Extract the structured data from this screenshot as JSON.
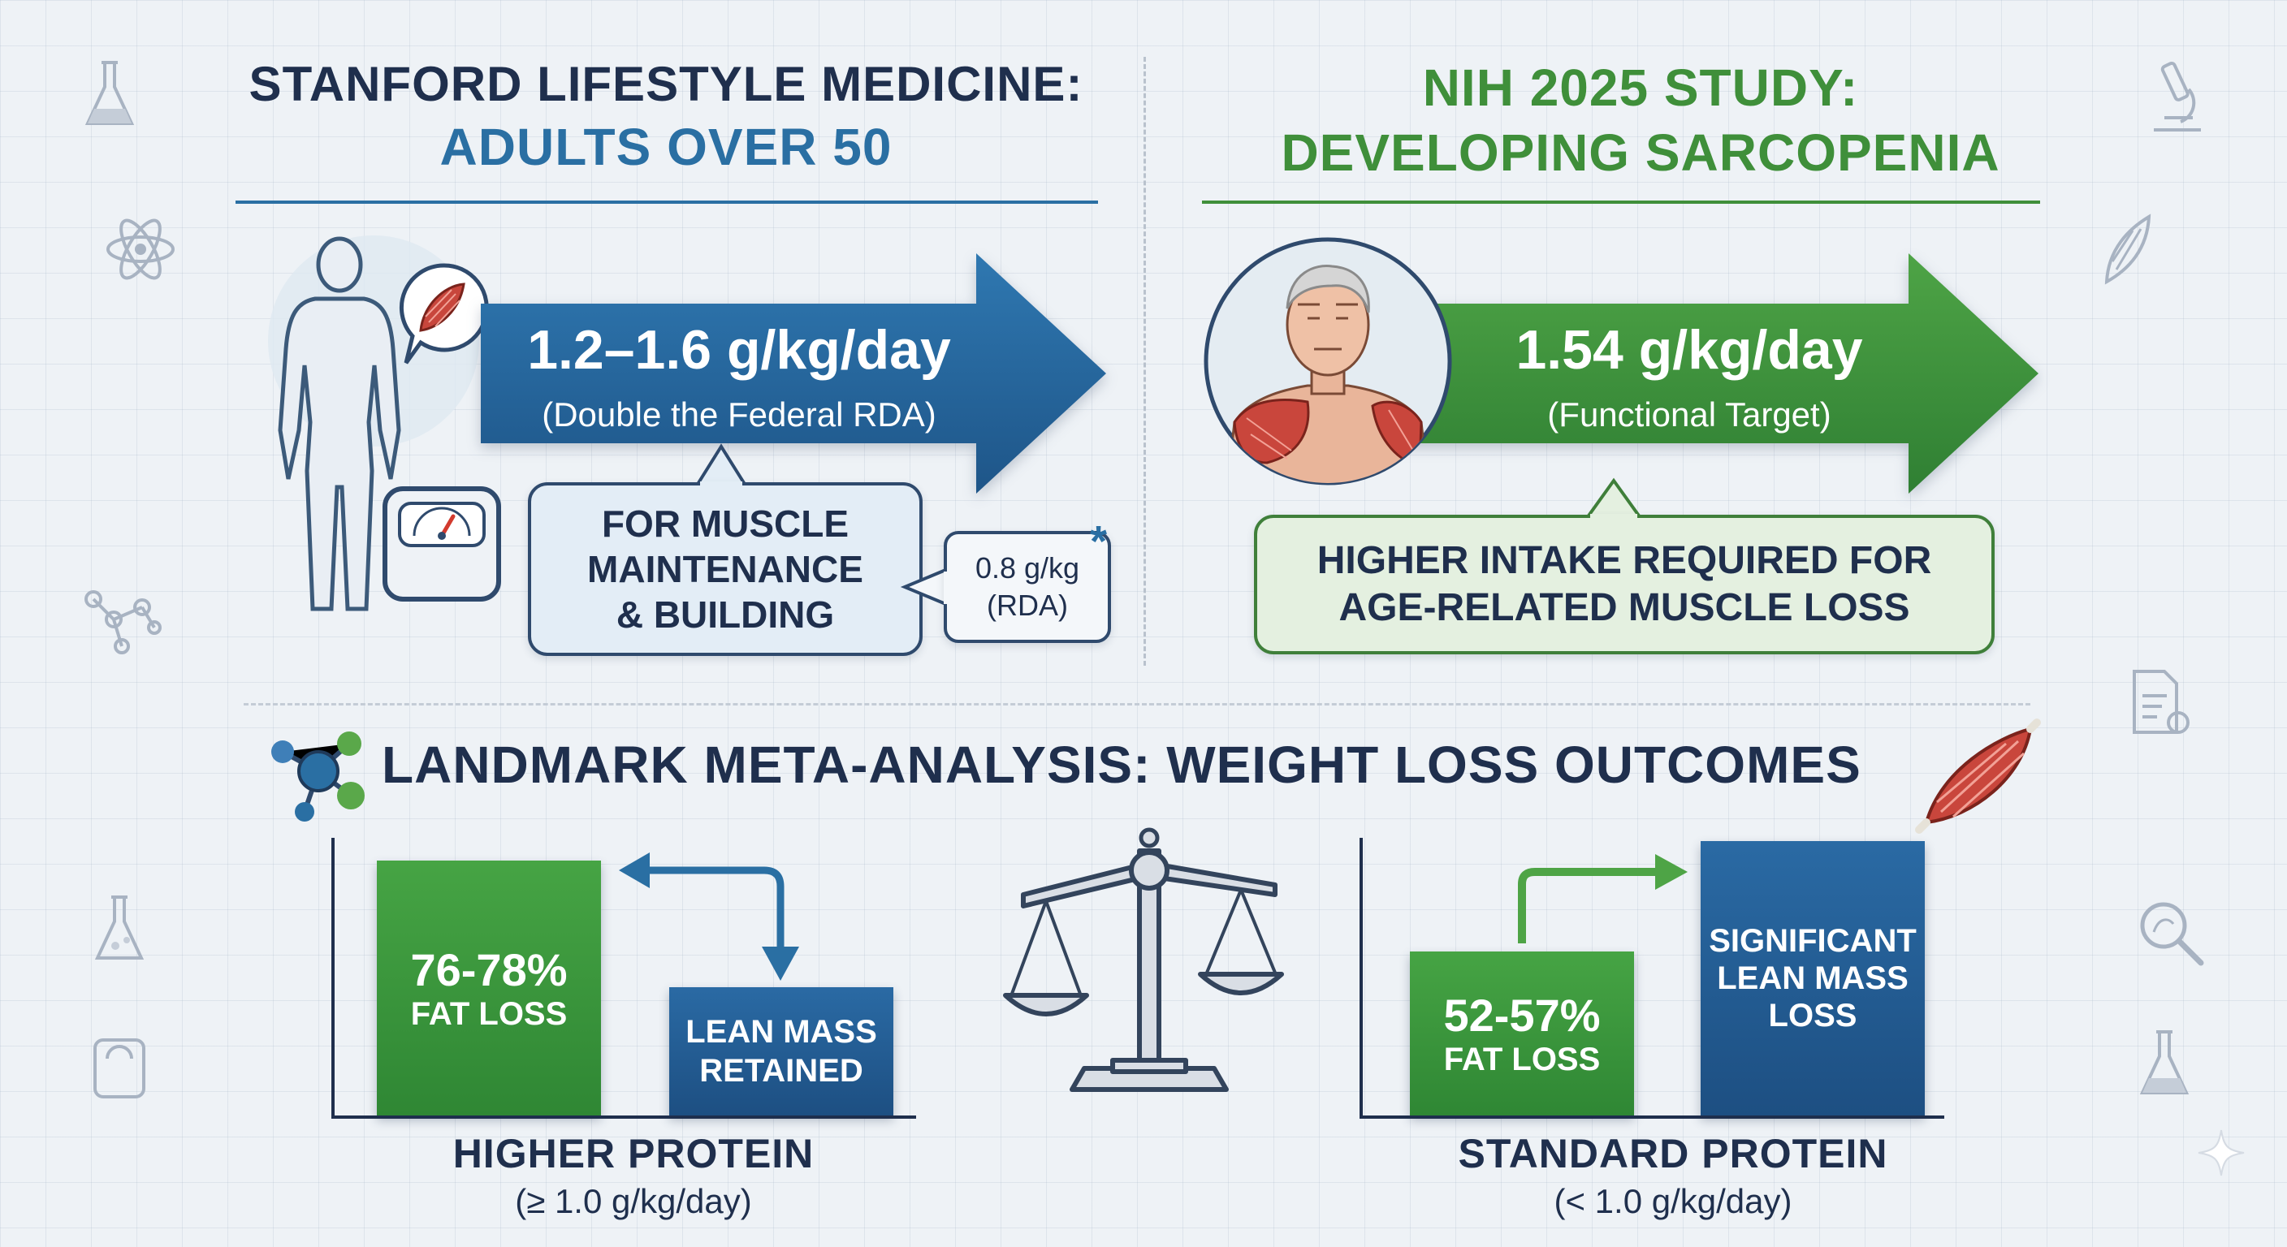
{
  "stanford": {
    "title_line1": "STANFORD LIFESTYLE MEDICINE:",
    "title_line2": "ADULTS OVER 50",
    "arrow_value": "1.2–1.6 g/kg/day",
    "arrow_note": "(Double the Federal RDA)",
    "callout_line1": "FOR MUSCLE",
    "callout_line2": "MAINTENANCE",
    "callout_line3": "& BUILDING",
    "rda_value": "0.8 g/kg",
    "rda_label": "(RDA)",
    "rda_marker": "*"
  },
  "nih": {
    "title_line1": "NIH 2025 STUDY:",
    "title_line2": "DEVELOPING SARCOPENIA",
    "arrow_value": "1.54 g/kg/day",
    "arrow_note": "(Functional Target)",
    "callout_line1": "HIGHER INTAKE REQUIRED FOR",
    "callout_line2": "AGE-RELATED MUSCLE LOSS"
  },
  "meta": {
    "title": "LANDMARK META-ANALYSIS: WEIGHT LOSS OUTCOMES",
    "higher": {
      "fat_value": "76-78%",
      "fat_label": "FAT LOSS",
      "lean_line1": "LEAN MASS",
      "lean_line2": "RETAINED",
      "label": "HIGHER PROTEIN",
      "sublabel": "(≥ 1.0 g/kg/day)"
    },
    "standard": {
      "fat_value": "52-57%",
      "fat_label": "FAT LOSS",
      "lean_line1": "SIGNIFICANT",
      "lean_line2": "LEAN MASS",
      "lean_line3": "LOSS",
      "label": "STANDARD PROTEIN",
      "sublabel": "(< 1.0 g/kg/day)"
    }
  },
  "colors": {
    "navy": "#1f2f4d",
    "blue": "#2a6fa3",
    "green": "#3f8f3a",
    "dark_blue_bar": "#1f5d94",
    "green_bar": "#3e9a3d"
  }
}
